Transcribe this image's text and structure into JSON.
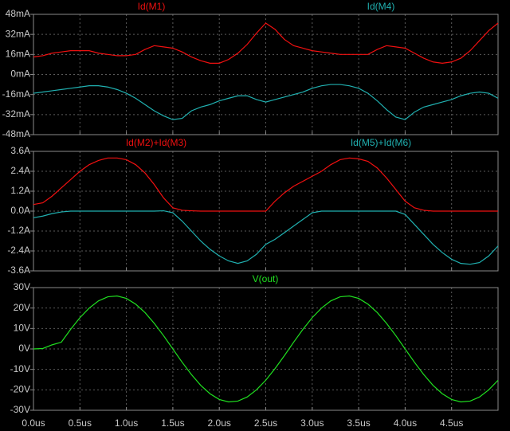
{
  "chart_data": [
    {
      "type": "line",
      "x": [
        0,
        0.1,
        0.2,
        0.3,
        0.4,
        0.5,
        0.6,
        0.7,
        0.8,
        0.9,
        1.0,
        1.1,
        1.2,
        1.3,
        1.4,
        1.5,
        1.6,
        1.7,
        1.8,
        1.9,
        2.0,
        2.1,
        2.2,
        2.3,
        2.4,
        2.5,
        2.6,
        2.7,
        2.8,
        2.9,
        3.0,
        3.1,
        3.2,
        3.3,
        3.4,
        3.5,
        3.6,
        3.7,
        3.8,
        3.9,
        4.0,
        4.1,
        4.2,
        4.3,
        4.4,
        4.5,
        4.6,
        4.7,
        4.8,
        4.9,
        5.0
      ],
      "xlim": [
        0,
        5
      ],
      "ylim": [
        -48,
        48
      ],
      "yticks": [
        {
          "value": 48,
          "label": "48mA"
        },
        {
          "value": 32,
          "label": "32mA"
        },
        {
          "value": 16,
          "label": "16mA"
        },
        {
          "value": 0,
          "label": "0mA"
        },
        {
          "value": -16,
          "label": "-16mA"
        },
        {
          "value": -32,
          "label": "-32mA"
        },
        {
          "value": -48,
          "label": "-48mA"
        }
      ],
      "grid": true,
      "series": [
        {
          "name": "Id(M1)",
          "color": "#f01010",
          "values": [
            14,
            15,
            17,
            18,
            19,
            19,
            19,
            17,
            16,
            15,
            15,
            16,
            20,
            23,
            22,
            21,
            18,
            14,
            11,
            9,
            9,
            12,
            17,
            24,
            33,
            41,
            36,
            28,
            23,
            21,
            19,
            18,
            17,
            16,
            16,
            16,
            16,
            20,
            23,
            22,
            21,
            17,
            13,
            10,
            9,
            10,
            13,
            19,
            27,
            35,
            41
          ]
        },
        {
          "name": "Id(M4)",
          "color": "#20b0b0",
          "values": [
            -15,
            -14,
            -13,
            -12,
            -11,
            -10,
            -9,
            -9,
            -10,
            -12,
            -15,
            -19,
            -24,
            -29,
            -33,
            -36,
            -35,
            -29,
            -26,
            -24,
            -21,
            -19,
            -17,
            -17,
            -20,
            -22,
            -20,
            -18,
            -16,
            -14,
            -11,
            -9,
            -8,
            -8,
            -9,
            -11,
            -15,
            -21,
            -28,
            -34,
            -36,
            -30,
            -26,
            -24,
            -22,
            -20,
            -17,
            -15,
            -14,
            -15,
            -19
          ]
        }
      ]
    },
    {
      "type": "line",
      "x": [
        0,
        0.1,
        0.2,
        0.3,
        0.4,
        0.5,
        0.6,
        0.7,
        0.8,
        0.9,
        1.0,
        1.1,
        1.2,
        1.3,
        1.4,
        1.5,
        1.6,
        1.7,
        1.8,
        1.9,
        2.0,
        2.1,
        2.2,
        2.3,
        2.4,
        2.5,
        2.6,
        2.7,
        2.8,
        2.9,
        3.0,
        3.1,
        3.2,
        3.3,
        3.4,
        3.5,
        3.6,
        3.7,
        3.8,
        3.9,
        4.0,
        4.1,
        4.2,
        4.3,
        4.4,
        4.5,
        4.6,
        4.7,
        4.8,
        4.9,
        5.0
      ],
      "xlim": [
        0,
        5
      ],
      "ylim": [
        -3.6,
        3.6
      ],
      "yticks": [
        {
          "value": 3.6,
          "label": "3.6A"
        },
        {
          "value": 2.4,
          "label": "2.4A"
        },
        {
          "value": 1.2,
          "label": "1.2A"
        },
        {
          "value": 0,
          "label": "0.0A"
        },
        {
          "value": -1.2,
          "label": "-1.2A"
        },
        {
          "value": -2.4,
          "label": "-2.4A"
        },
        {
          "value": -3.6,
          "label": "-3.6A"
        }
      ],
      "grid": true,
      "series": [
        {
          "name": "Id(M2)+Id(M3)",
          "color": "#f01010",
          "values": [
            0.4,
            0.5,
            0.9,
            1.4,
            1.9,
            2.4,
            2.8,
            3.05,
            3.2,
            3.2,
            3.1,
            2.8,
            2.3,
            1.6,
            0.8,
            0.2,
            0.05,
            0.02,
            0,
            0,
            0,
            0,
            0,
            0,
            0,
            0,
            0.6,
            1.1,
            1.5,
            1.8,
            2.1,
            2.4,
            2.8,
            3.1,
            3.2,
            3.15,
            3.0,
            2.6,
            2.0,
            1.3,
            0.6,
            0.2,
            0.05,
            0,
            0,
            0,
            0,
            0,
            0,
            0,
            0
          ]
        },
        {
          "name": "Id(M5)+Id(M6)",
          "color": "#20b0b0",
          "values": [
            -0.4,
            -0.3,
            -0.15,
            -0.05,
            0,
            0,
            0,
            0,
            0,
            0,
            0,
            0,
            0,
            0,
            0.02,
            -0.1,
            -0.6,
            -1.2,
            -1.8,
            -2.3,
            -2.7,
            -3.0,
            -3.15,
            -3.0,
            -2.6,
            -2.0,
            -1.7,
            -1.3,
            -0.9,
            -0.5,
            -0.1,
            0,
            0,
            0,
            0,
            0,
            0,
            0,
            0,
            0,
            -0.2,
            -0.8,
            -1.4,
            -2.0,
            -2.5,
            -2.9,
            -3.15,
            -3.2,
            -3.1,
            -2.7,
            -2.1
          ]
        }
      ]
    },
    {
      "type": "line",
      "x": [
        0,
        0.1,
        0.2,
        0.3,
        0.4,
        0.5,
        0.6,
        0.7,
        0.8,
        0.9,
        1.0,
        1.1,
        1.2,
        1.3,
        1.4,
        1.5,
        1.6,
        1.7,
        1.8,
        1.9,
        2.0,
        2.1,
        2.2,
        2.3,
        2.4,
        2.5,
        2.6,
        2.7,
        2.8,
        2.9,
        3.0,
        3.1,
        3.2,
        3.3,
        3.4,
        3.5,
        3.6,
        3.7,
        3.8,
        3.9,
        4.0,
        4.1,
        4.2,
        4.3,
        4.4,
        4.5,
        4.6,
        4.7,
        4.8,
        4.9,
        5.0
      ],
      "xlim": [
        0,
        5
      ],
      "xticks": [
        {
          "value": 0,
          "label": "0.0us"
        },
        {
          "value": 0.5,
          "label": "0.5us"
        },
        {
          "value": 1,
          "label": "1.0us"
        },
        {
          "value": 1.5,
          "label": "1.5us"
        },
        {
          "value": 2,
          "label": "2.0us"
        },
        {
          "value": 2.5,
          "label": "2.5us"
        },
        {
          "value": 3,
          "label": "3.0us"
        },
        {
          "value": 3.5,
          "label": "3.5us"
        },
        {
          "value": 4,
          "label": "4.0us"
        },
        {
          "value": 4.5,
          "label": "4.5us"
        }
      ],
      "ylim": [
        -30,
        30
      ],
      "yticks": [
        {
          "value": 30,
          "label": "30V"
        },
        {
          "value": 20,
          "label": "20V"
        },
        {
          "value": 10,
          "label": "10V"
        },
        {
          "value": 0,
          "label": "0V"
        },
        {
          "value": -10,
          "label": "-10V"
        },
        {
          "value": -20,
          "label": "-20V"
        },
        {
          "value": -30,
          "label": "-30V"
        }
      ],
      "grid": true,
      "series": [
        {
          "name": "V(out)",
          "color": "#20e020",
          "values": [
            0,
            0.2,
            2,
            3.3,
            9.6,
            15.3,
            20.0,
            23.5,
            25.5,
            25.9,
            24.7,
            21.9,
            17.8,
            12.5,
            6.5,
            0,
            -6.5,
            -12.5,
            -17.8,
            -21.9,
            -24.7,
            -25.9,
            -25.5,
            -23.5,
            -20.0,
            -15.3,
            -9.6,
            -3.3,
            3.3,
            9.6,
            15.3,
            20.0,
            23.5,
            25.5,
            25.9,
            24.7,
            21.9,
            17.8,
            12.5,
            6.5,
            0,
            -6.5,
            -12.5,
            -17.8,
            -21.9,
            -24.7,
            -25.9,
            -25.5,
            -23.5,
            -20.0,
            -15.3
          ]
        }
      ]
    }
  ]
}
